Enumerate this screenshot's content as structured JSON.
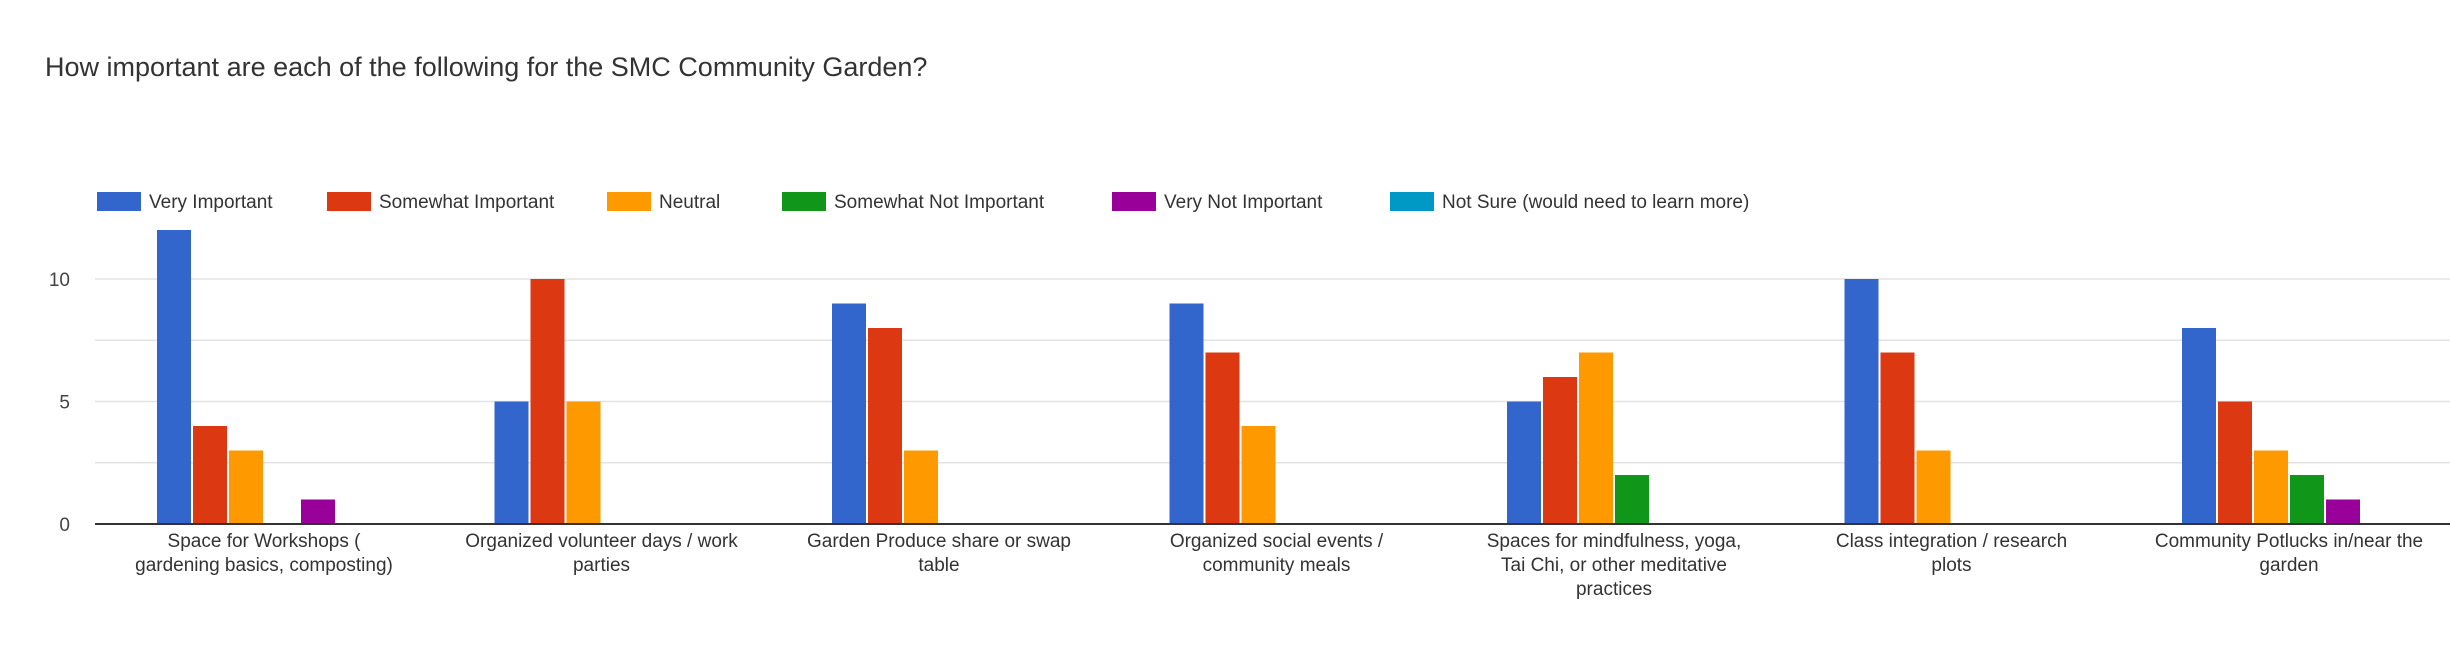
{
  "chart_data": {
    "type": "bar",
    "title": "How important are each of the following for the SMC Community Garden?",
    "xlabel": "",
    "ylabel": "",
    "ylim": [
      0,
      12
    ],
    "yticks": [
      0,
      5,
      10
    ],
    "grid": true,
    "legend_position": "top",
    "categories": [
      [
        "Space for Workshops (",
        "gardening basics, composting)"
      ],
      [
        "Organized volunteer days / work",
        "parties"
      ],
      [
        "Garden Produce share or swap",
        "table"
      ],
      [
        "Organized social events /",
        "community meals"
      ],
      [
        "Spaces for mindfulness, yoga,",
        "Tai Chi, or other meditative",
        "practices"
      ],
      [
        "Class integration / research",
        "plots"
      ],
      [
        "Community Potlucks in/near the",
        "garden"
      ]
    ],
    "series": [
      {
        "name": "Very Important",
        "color": "#3366cc",
        "values": [
          12,
          5,
          9,
          9,
          5,
          10,
          8
        ]
      },
      {
        "name": "Somewhat Important",
        "color": "#dc3912",
        "values": [
          4,
          10,
          8,
          7,
          6,
          7,
          5
        ]
      },
      {
        "name": "Neutral",
        "color": "#ff9900",
        "values": [
          3,
          5,
          3,
          4,
          7,
          3,
          3
        ]
      },
      {
        "name": "Somewhat Not Important",
        "color": "#109618",
        "values": [
          0,
          0,
          0,
          0,
          2,
          0,
          2
        ]
      },
      {
        "name": "Very Not Important",
        "color": "#990099",
        "values": [
          1,
          0,
          0,
          0,
          0,
          0,
          1
        ]
      },
      {
        "name": "Not Sure (would need to learn more)",
        "color": "#0099c6",
        "values": [
          0,
          0,
          0,
          0,
          0,
          0,
          0
        ]
      }
    ]
  }
}
